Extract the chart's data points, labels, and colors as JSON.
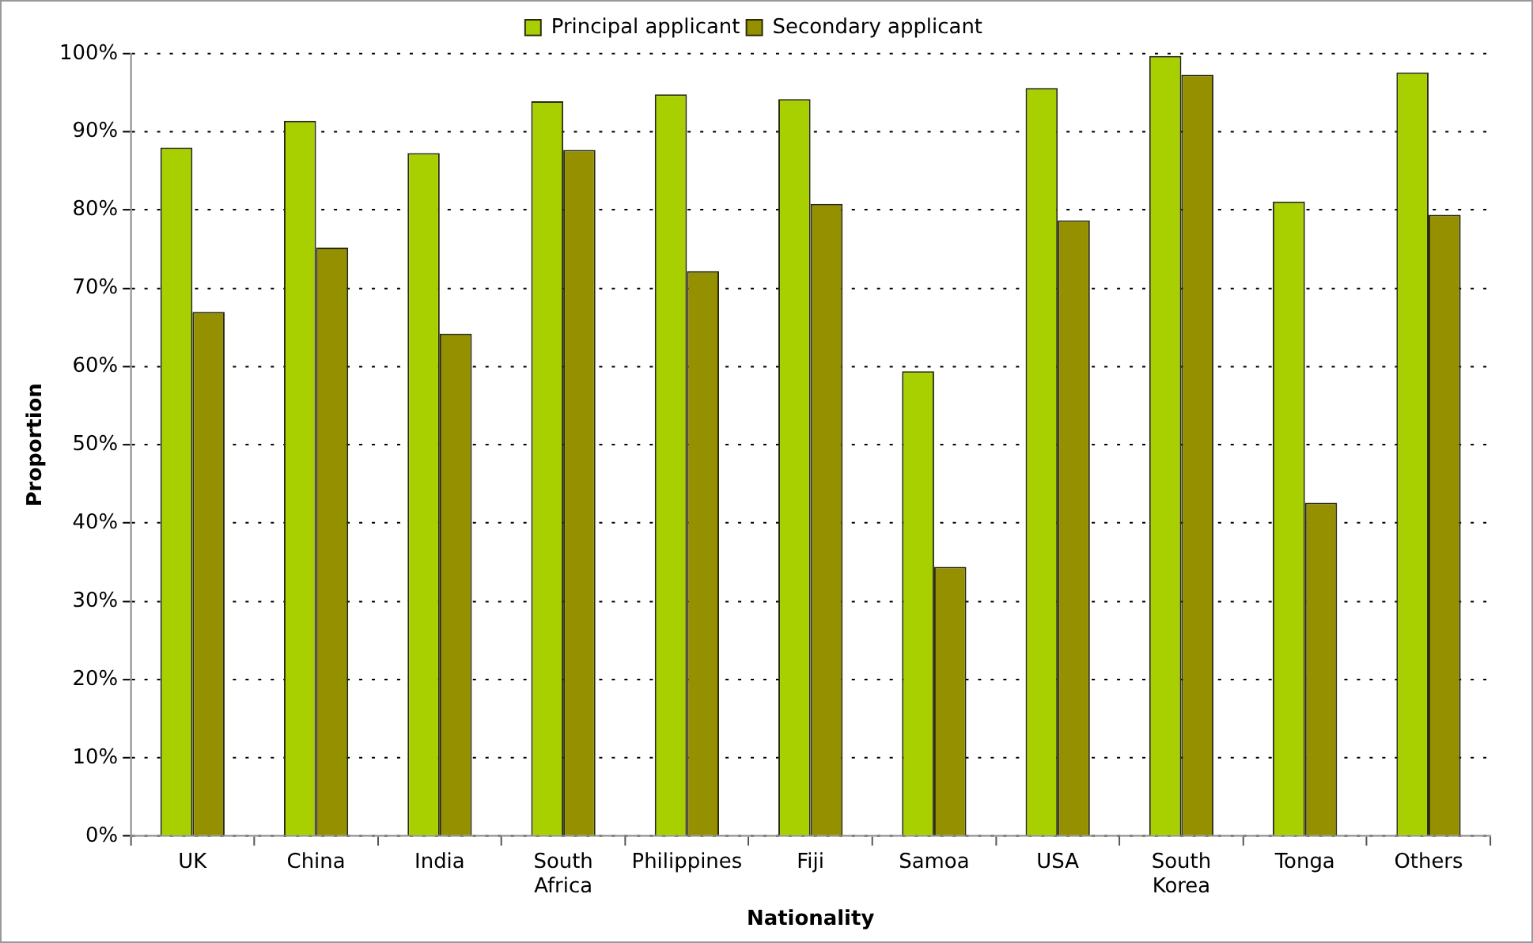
{
  "chart_data": {
    "type": "bar",
    "xlabel": "Nationality",
    "ylabel": "Proportion",
    "categories": [
      "UK",
      "China",
      "India",
      "South Africa",
      "Philippines",
      "Fiji",
      "Samoa",
      "USA",
      "South Korea",
      "Tonga",
      "Others"
    ],
    "series": [
      {
        "name": "Principal applicant",
        "color": "#a8d000",
        "values": [
          88.0,
          91.4,
          87.3,
          93.9,
          94.8,
          94.2,
          59.4,
          95.6,
          99.7,
          81.1,
          97.6
        ]
      },
      {
        "name": "Secondary applicant",
        "color": "#949000",
        "values": [
          67.0,
          75.2,
          64.2,
          87.7,
          72.2,
          80.8,
          34.4,
          78.7,
          97.3,
          42.6,
          79.4
        ]
      }
    ],
    "ylim": [
      0,
      100
    ],
    "yticks": [
      {
        "value": 0,
        "label": "0%"
      },
      {
        "value": 10,
        "label": "10%"
      },
      {
        "value": 20,
        "label": "20%"
      },
      {
        "value": 30,
        "label": "30%"
      },
      {
        "value": 40,
        "label": "40%"
      },
      {
        "value": 50,
        "label": "50%"
      },
      {
        "value": 60,
        "label": "60%"
      },
      {
        "value": 70,
        "label": "70%"
      },
      {
        "value": 80,
        "label": "80%"
      },
      {
        "value": 90,
        "label": "90%"
      },
      {
        "value": 100,
        "label": "100%"
      }
    ],
    "grid": "y",
    "legend": "top"
  }
}
